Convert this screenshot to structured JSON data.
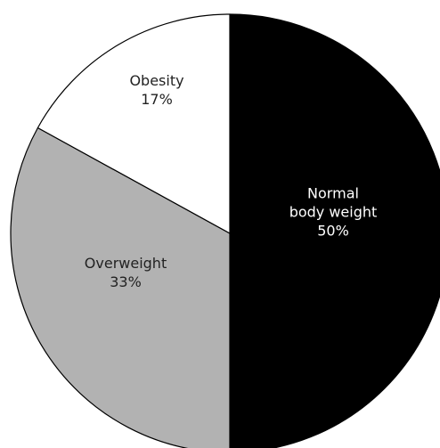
{
  "chart_data": {
    "type": "pie",
    "categories": [
      "Normal body weight",
      "Overweight",
      "Obesity"
    ],
    "label_lines": [
      [
        "Normal",
        "body weight",
        "50%"
      ],
      [
        "Overweight",
        "33%"
      ],
      [
        "Obesity",
        "17%"
      ]
    ],
    "values": [
      50,
      33,
      17
    ],
    "value_unit": "%",
    "colors": [
      "#000000",
      "#b2b2b2",
      "#ffffff"
    ],
    "label_colors": [
      "#ffffff",
      "#222222",
      "#222222"
    ],
    "stroke_color": "#000000",
    "start": "12 o'clock",
    "direction": "clockwise",
    "legend": "none",
    "title": "",
    "xlabel": "",
    "ylabel": ""
  }
}
